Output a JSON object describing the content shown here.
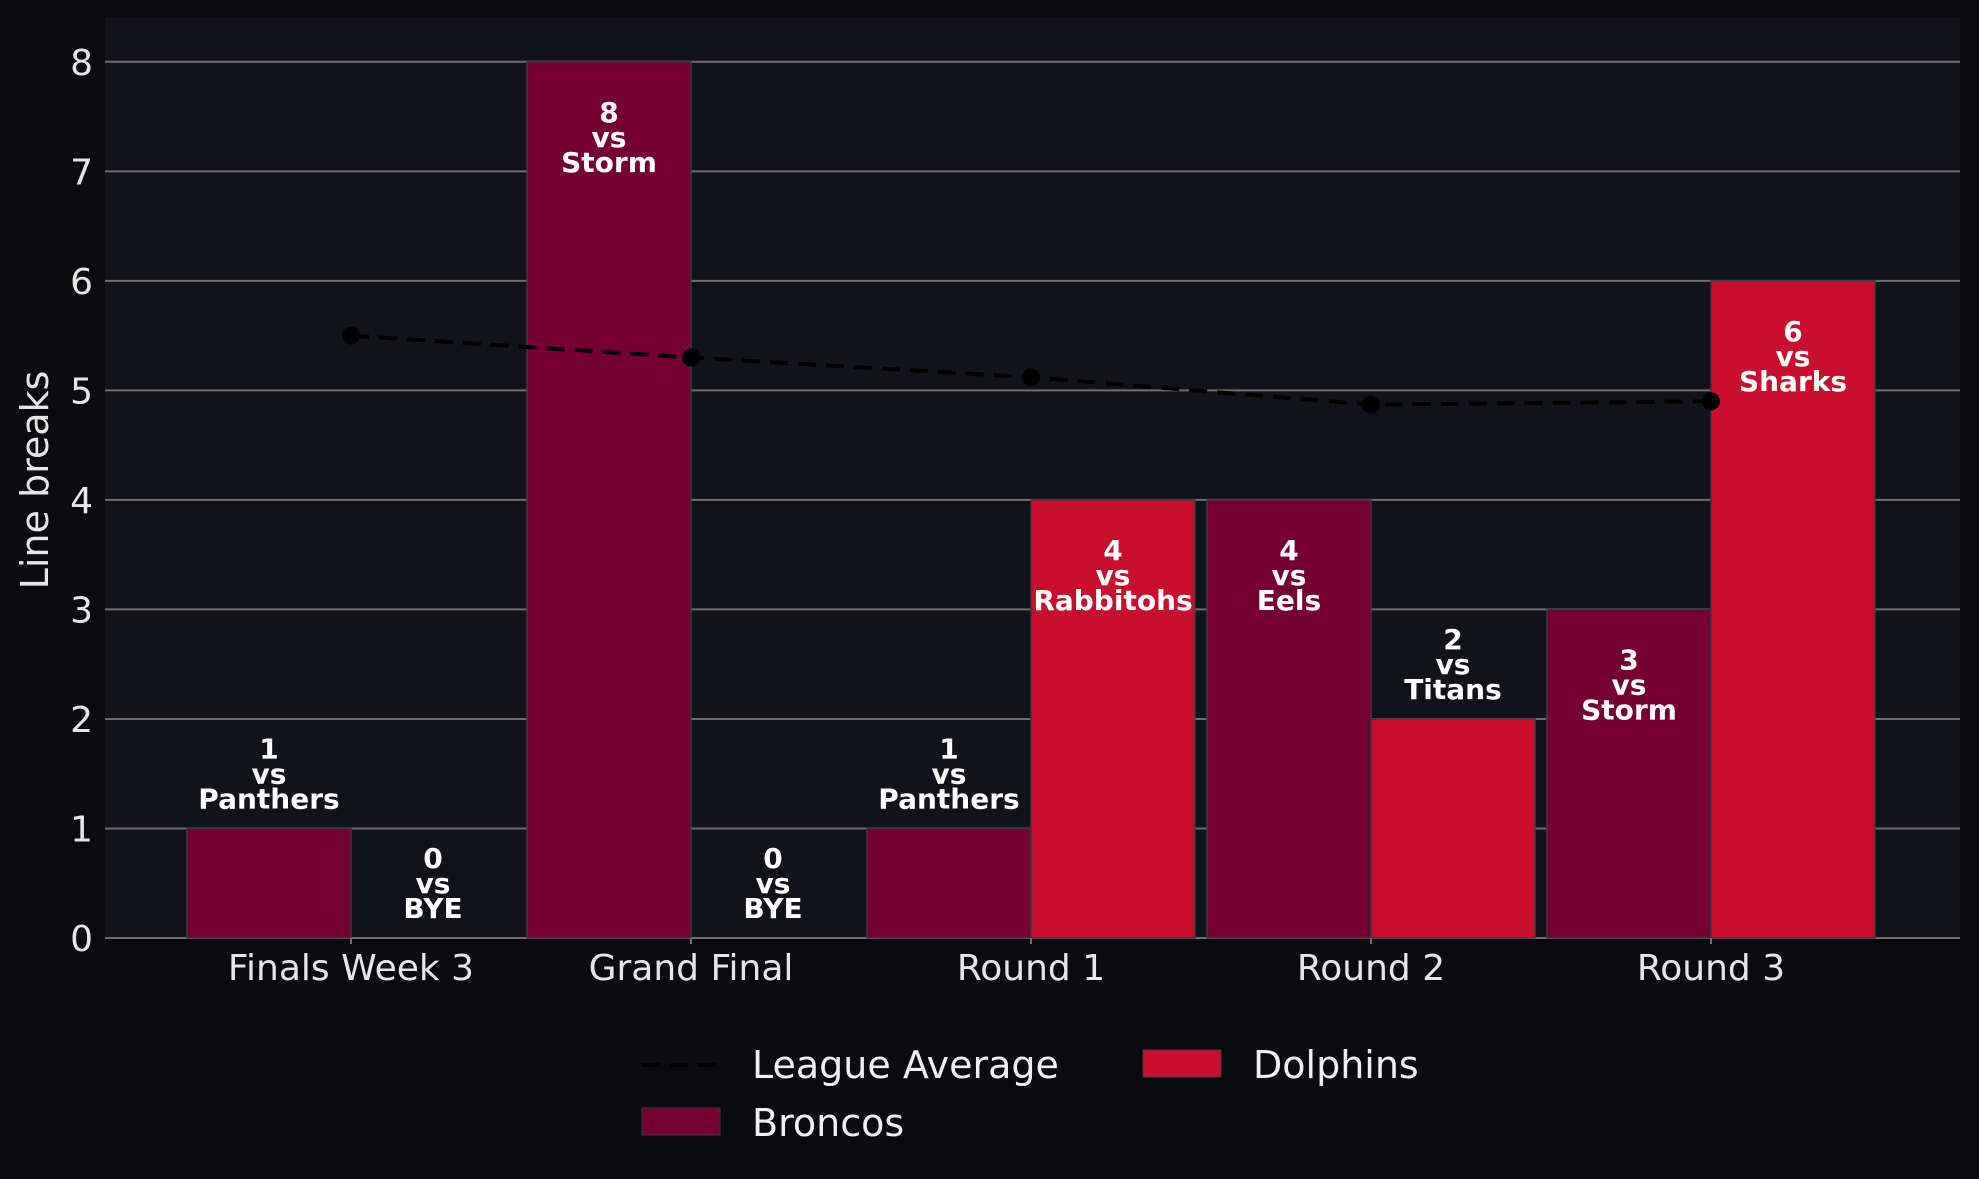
{
  "chart_data": {
    "type": "bar",
    "title": "",
    "xlabel": "",
    "ylabel": "Line breaks",
    "ylim": [
      0,
      8.4
    ],
    "yticks": [
      0,
      1,
      2,
      3,
      4,
      5,
      6,
      7,
      8
    ],
    "grid": "horizontal",
    "legend_position": "bottom-center",
    "categories": [
      "Finals Week 3",
      "Grand Final",
      "Round 1",
      "Round 2",
      "Round 3"
    ],
    "series": [
      {
        "name": "Broncos",
        "color": "#750033",
        "values": [
          1,
          8,
          1,
          4,
          3
        ],
        "opponents": [
          "Panthers",
          "Storm",
          "Panthers",
          "Eels",
          "Storm"
        ]
      },
      {
        "name": "Dolphins",
        "color": "#c8102e",
        "values": [
          0,
          0,
          4,
          2,
          6
        ],
        "opponents": [
          "BYE",
          "BYE",
          "Rabbitohs",
          "Titans",
          "Sharks"
        ]
      }
    ],
    "bar_label_connector": "vs",
    "league_average": {
      "name": "League Average",
      "color": "#000000",
      "values": [
        5.5,
        5.3,
        5.12,
        4.87,
        4.9
      ]
    },
    "colors": {
      "figure_background": "#0a0a0f",
      "plot_background": "#12131a",
      "grid": "#6e6e6e",
      "text": "#e6e6e6"
    }
  }
}
